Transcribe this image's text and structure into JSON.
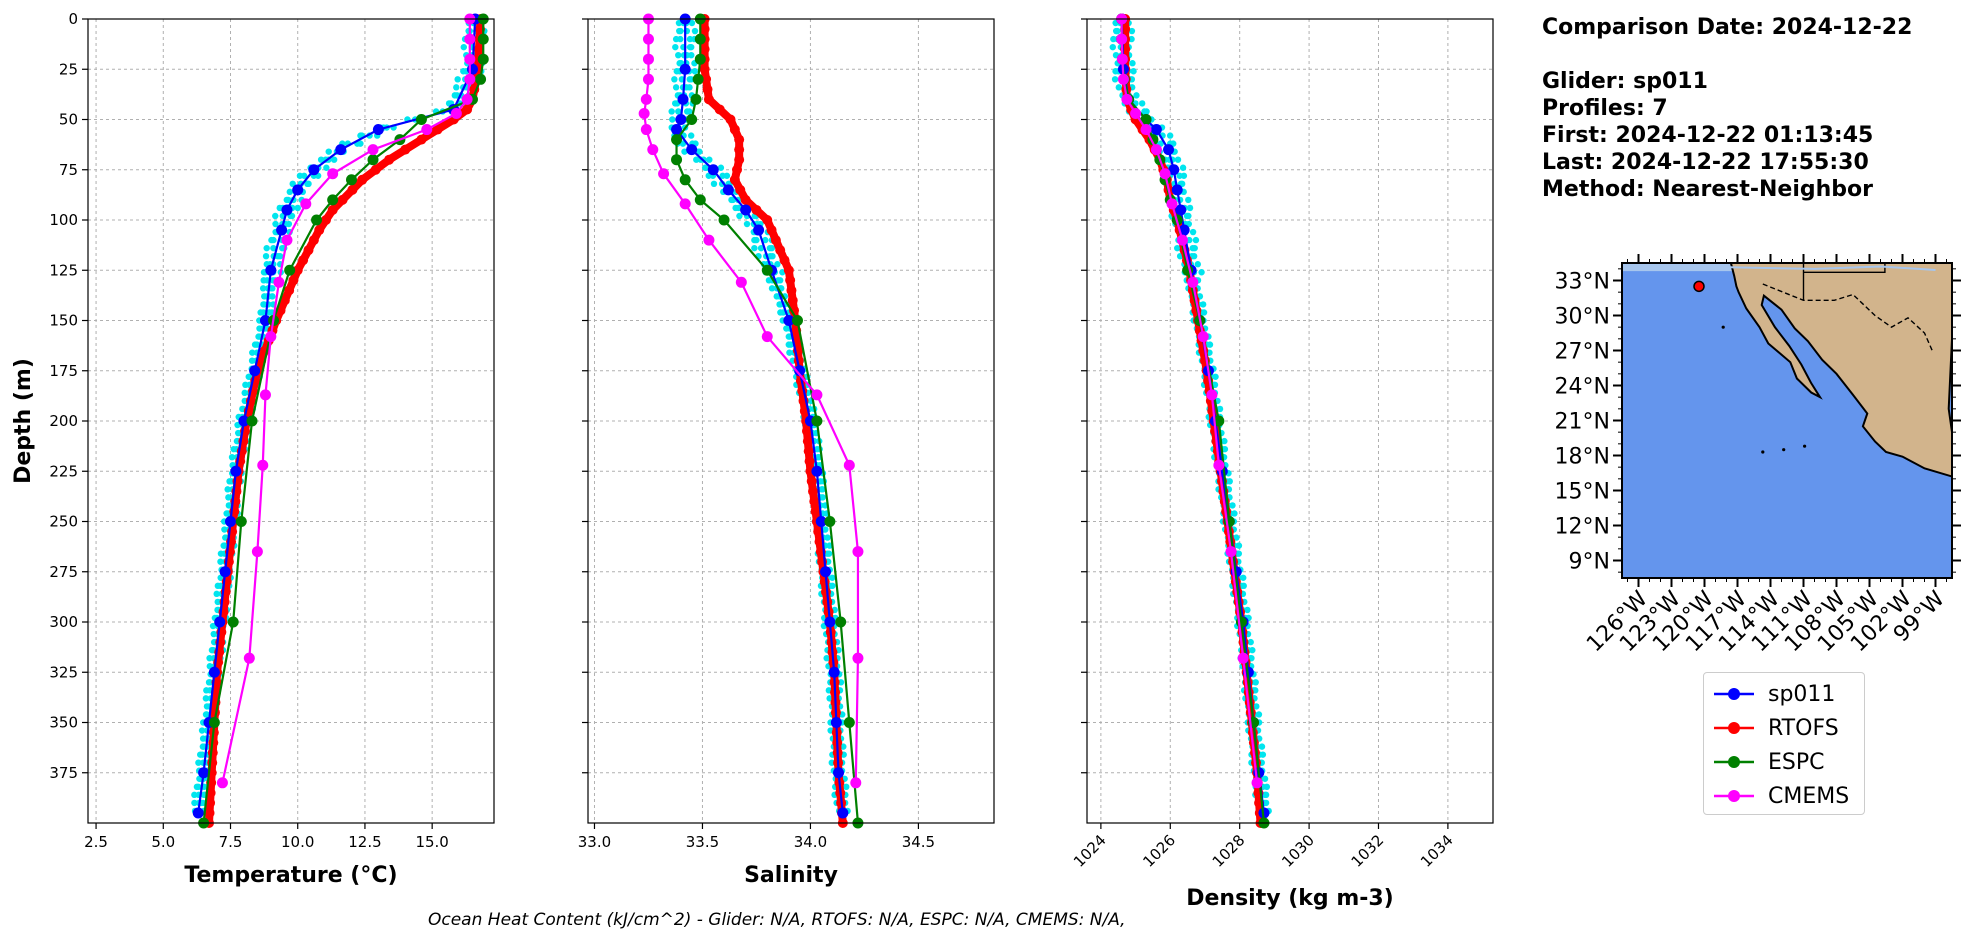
{
  "figure": {
    "footer": "Ocean Heat Content (kJ/cm^2) - Glider: N/A,  RTOFS: N/A,  ESPC: N/A,  CMEMS: N/A,",
    "info": {
      "comparison_date": "Comparison Date: 2024-12-22",
      "glider": "Glider: sp011",
      "profiles": "Profiles: 7",
      "first": "First: 2024-12-22 01:13:45",
      "last": "Last: 2024-12-22 17:55:30",
      "method": "Method: Nearest-Neighbor"
    },
    "legend": [
      {
        "label": "sp011",
        "color": "#0000ff"
      },
      {
        "label": "RTOFS",
        "color": "#ff0000"
      },
      {
        "label": "ESPC",
        "color": "#008000"
      },
      {
        "label": "CMEMS",
        "color": "#ff00ff"
      }
    ],
    "colors": {
      "glider_scatter": "#00e5ee",
      "ocean": "#6495ed",
      "shelf": "#a7c6ed",
      "land": "#d2b48c"
    }
  },
  "chart_data": [
    {
      "type": "line",
      "xlabel": "Temperature (°C)",
      "ylabel": "Depth (m)",
      "xlim": [
        2.2,
        17.3
      ],
      "ylim": [
        400,
        0
      ],
      "xticks": [
        "2.5",
        "5.0",
        "7.5",
        "10.0",
        "12.5",
        "15.0"
      ],
      "yticks": [
        "0",
        "25",
        "50",
        "75",
        "100",
        "125",
        "150",
        "175",
        "200",
        "225",
        "250",
        "275",
        "300",
        "325",
        "350",
        "375"
      ],
      "grid": true,
      "series": [
        {
          "name": "sp011",
          "depth": [
            0,
            25,
            45,
            55,
            65,
            75,
            85,
            95,
            105,
            125,
            150,
            175,
            200,
            225,
            250,
            275,
            300,
            325,
            350,
            375,
            395
          ],
          "values": [
            16.6,
            16.5,
            15.8,
            13.0,
            11.6,
            10.6,
            10.0,
            9.6,
            9.4,
            9.0,
            8.8,
            8.4,
            8.0,
            7.7,
            7.5,
            7.3,
            7.1,
            6.9,
            6.7,
            6.5,
            6.3
          ]
        },
        {
          "name": "RTOFS",
          "depth": [
            0,
            25,
            40,
            45,
            50,
            60,
            70,
            80,
            95,
            105,
            125,
            150,
            175,
            200,
            225,
            250,
            275,
            300,
            325,
            350,
            375,
            400
          ],
          "values": [
            16.8,
            16.7,
            16.5,
            16.3,
            15.8,
            14.6,
            13.4,
            12.4,
            11.3,
            10.8,
            10.0,
            9.2,
            8.5,
            8.1,
            7.8,
            7.6,
            7.4,
            7.2,
            7.0,
            6.9,
            6.8,
            6.7
          ]
        },
        {
          "name": "ESPC",
          "depth": [
            0,
            10,
            20,
            30,
            40,
            50,
            60,
            70,
            80,
            90,
            100,
            125,
            150,
            200,
            250,
            300,
            350,
            400
          ],
          "values": [
            16.9,
            16.9,
            16.9,
            16.8,
            16.5,
            14.6,
            13.8,
            12.8,
            12.0,
            11.3,
            10.7,
            9.7,
            9.1,
            8.3,
            7.9,
            7.6,
            6.9,
            6.5
          ]
        },
        {
          "name": "CMEMS",
          "depth": [
            0,
            10,
            20,
            30,
            40,
            47,
            55,
            65,
            77,
            92,
            110,
            131,
            158,
            187,
            222,
            265,
            318,
            380
          ],
          "values": [
            16.4,
            16.4,
            16.4,
            16.4,
            16.3,
            15.9,
            14.8,
            12.8,
            11.3,
            10.3,
            9.6,
            9.3,
            9.0,
            8.8,
            8.7,
            8.5,
            8.2,
            7.2
          ]
        }
      ]
    },
    {
      "type": "line",
      "xlabel": "Salinity",
      "ylim": [
        400,
        0
      ],
      "xlim": [
        32.97,
        34.85
      ],
      "xticks": [
        "33.0",
        "33.5",
        "34.0",
        "34.5"
      ],
      "grid": true,
      "series": [
        {
          "name": "sp011",
          "depth": [
            0,
            25,
            40,
            50,
            55,
            65,
            75,
            85,
            95,
            105,
            125,
            150,
            175,
            200,
            225,
            250,
            275,
            300,
            325,
            350,
            375,
            395
          ],
          "values": [
            33.42,
            33.42,
            33.41,
            33.4,
            33.38,
            33.45,
            33.55,
            33.62,
            33.7,
            33.76,
            33.82,
            33.9,
            33.95,
            34.0,
            34.03,
            34.05,
            34.07,
            34.09,
            34.11,
            34.12,
            34.13,
            34.15
          ]
        },
        {
          "name": "RTOFS",
          "depth": [
            0,
            25,
            40,
            50,
            60,
            70,
            80,
            90,
            100,
            125,
            150,
            175,
            200,
            225,
            250,
            275,
            300,
            325,
            350,
            375,
            400
          ],
          "values": [
            33.51,
            33.51,
            33.53,
            33.63,
            33.67,
            33.67,
            33.65,
            33.7,
            33.8,
            33.9,
            33.93,
            33.95,
            33.98,
            34.0,
            34.03,
            34.06,
            34.09,
            34.11,
            34.12,
            34.13,
            34.15
          ]
        },
        {
          "name": "ESPC",
          "depth": [
            0,
            10,
            20,
            30,
            40,
            50,
            60,
            70,
            80,
            90,
            100,
            125,
            150,
            200,
            250,
            300,
            350,
            400
          ],
          "values": [
            33.49,
            33.49,
            33.49,
            33.48,
            33.47,
            33.45,
            33.38,
            33.38,
            33.42,
            33.49,
            33.6,
            33.8,
            33.94,
            34.03,
            34.09,
            34.14,
            34.18,
            34.22
          ]
        },
        {
          "name": "CMEMS",
          "depth": [
            0,
            10,
            20,
            30,
            40,
            47,
            55,
            65,
            77,
            92,
            110,
            131,
            158,
            187,
            222,
            265,
            318,
            380
          ],
          "values": [
            33.25,
            33.25,
            33.25,
            33.25,
            33.24,
            33.23,
            33.24,
            33.27,
            33.32,
            33.42,
            33.53,
            33.68,
            33.8,
            34.03,
            34.18,
            34.22,
            34.22,
            34.21
          ]
        }
      ]
    },
    {
      "type": "line",
      "xlabel": "Density (kg m-3)",
      "ylim": [
        400,
        0
      ],
      "xlim": [
        1023.6,
        1035.3
      ],
      "xticks": [
        "1024",
        "1026",
        "1028",
        "1030",
        "1032",
        "1034"
      ],
      "grid": true,
      "series": [
        {
          "name": "sp011",
          "depth": [
            0,
            25,
            40,
            50,
            55,
            65,
            75,
            85,
            95,
            105,
            125,
            150,
            175,
            200,
            225,
            250,
            275,
            300,
            325,
            350,
            375,
            395
          ],
          "values": [
            1024.6,
            1024.65,
            1024.8,
            1025.3,
            1025.6,
            1025.95,
            1026.1,
            1026.2,
            1026.3,
            1026.4,
            1026.6,
            1026.85,
            1027.1,
            1027.3,
            1027.5,
            1027.7,
            1027.9,
            1028.1,
            1028.25,
            1028.4,
            1028.55,
            1028.7
          ]
        },
        {
          "name": "RTOFS",
          "depth": [
            0,
            25,
            40,
            50,
            60,
            70,
            80,
            90,
            100,
            125,
            150,
            175,
            200,
            225,
            250,
            275,
            300,
            325,
            350,
            375,
            400
          ],
          "values": [
            1024.7,
            1024.7,
            1024.75,
            1025.0,
            1025.4,
            1025.7,
            1025.9,
            1026.0,
            1026.2,
            1026.55,
            1026.8,
            1027.05,
            1027.25,
            1027.45,
            1027.65,
            1027.85,
            1028.05,
            1028.2,
            1028.35,
            1028.5,
            1028.6
          ]
        },
        {
          "name": "ESPC",
          "depth": [
            0,
            10,
            20,
            30,
            40,
            50,
            60,
            70,
            80,
            90,
            100,
            125,
            150,
            200,
            250,
            300,
            350,
            400
          ],
          "values": [
            1024.6,
            1024.6,
            1024.62,
            1024.67,
            1024.8,
            1025.3,
            1025.5,
            1025.7,
            1025.85,
            1026.0,
            1026.2,
            1026.5,
            1026.85,
            1027.4,
            1027.7,
            1028.05,
            1028.4,
            1028.7
          ]
        },
        {
          "name": "CMEMS",
          "depth": [
            0,
            10,
            20,
            30,
            40,
            47,
            55,
            65,
            77,
            92,
            110,
            131,
            158,
            187,
            222,
            265,
            318,
            380
          ],
          "values": [
            1024.6,
            1024.6,
            1024.62,
            1024.65,
            1024.75,
            1025.0,
            1025.3,
            1025.6,
            1025.85,
            1026.05,
            1026.35,
            1026.65,
            1026.95,
            1027.2,
            1027.4,
            1027.75,
            1028.1,
            1028.5
          ]
        }
      ]
    },
    {
      "type": "map",
      "lat_ticks": [
        "33°N",
        "30°N",
        "27°N",
        "24°N",
        "21°N",
        "18°N",
        "15°N",
        "12°N",
        "9°N"
      ],
      "lon_ticks": [
        "126°W",
        "123°W",
        "120°W",
        "117°W",
        "114°W",
        "111°W",
        "108°W",
        "105°W",
        "102°W",
        "99°W"
      ],
      "extent": {
        "lon": [
          -127.5,
          -97.5
        ],
        "lat": [
          7.5,
          34.5
        ]
      },
      "glider_position": {
        "lon": -120.5,
        "lat": 32.5
      }
    }
  ]
}
